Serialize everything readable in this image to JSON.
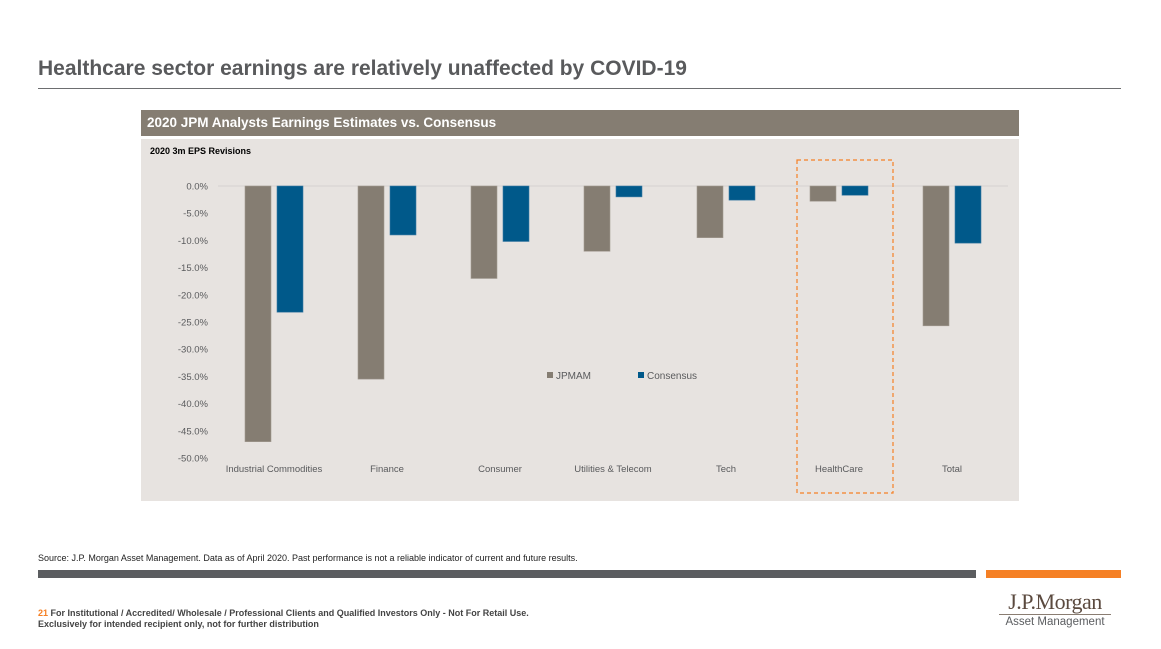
{
  "slide": {
    "title": "Healthcare sector earnings are relatively unaffected by COVID-19",
    "panel_header": "2020 JPM Analysts Earnings Estimates vs. Consensus",
    "source": "Source: J.P. Morgan Asset Management. Data as of April 2020. Past performance is not a reliable indicator of current and future results.",
    "page_number": "21",
    "footer_line1": " For Institutional / Accredited/ Wholesale / Professional Clients and Qualified Investors Only - Not For Retail Use.",
    "footer_line2": "Exclusively for intended recipient only, not for further distribution",
    "logo_main": "J.P.Morgan",
    "logo_sub": "Asset Management",
    "colors": {
      "jpmam": "#857d72",
      "consensus": "#00598a",
      "highlight": "#f58025",
      "accent_orange": "#f58025",
      "dark_gray": "#5b5d60"
    }
  },
  "chart_data": {
    "type": "bar",
    "title": "2020 3m EPS Revisions",
    "xlabel": "",
    "ylabel": "",
    "ylim": [
      -50,
      0
    ],
    "yticks": [
      0,
      -5,
      -10,
      -15,
      -20,
      -25,
      -30,
      -35,
      -40,
      -45,
      -50
    ],
    "ytick_labels": [
      "0.0%",
      "-5.0%",
      "-10.0%",
      "-15.0%",
      "-20.0%",
      "-25.0%",
      "-30.0%",
      "-35.0%",
      "-40.0%",
      "-45.0%",
      "-50.0%"
    ],
    "categories": [
      "Industrial Commodities",
      "Finance",
      "Consumer",
      "Utilities & Telecom",
      "Tech",
      "HealthCare",
      "Total"
    ],
    "series": [
      {
        "name": "JPMAM",
        "values": [
          -47.0,
          -35.5,
          -17.0,
          -12.0,
          -9.5,
          -2.8,
          -25.7
        ]
      },
      {
        "name": "Consensus",
        "values": [
          -23.2,
          -9.0,
          -10.2,
          -2.0,
          -2.6,
          -1.7,
          -10.5
        ]
      }
    ],
    "legend": {
      "placement": "center-inside",
      "entries": [
        "JPMAM",
        "Consensus"
      ]
    },
    "highlight_category": "HealthCare",
    "grid": false,
    "units": "percent"
  }
}
